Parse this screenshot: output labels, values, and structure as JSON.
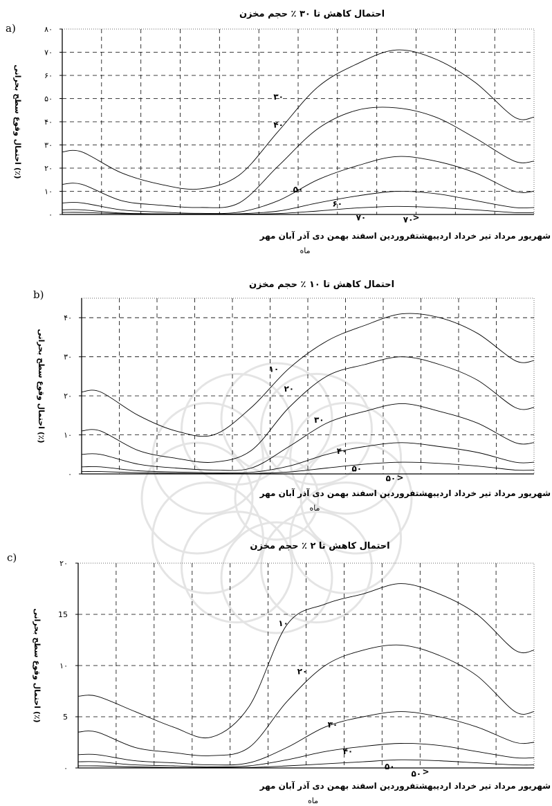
{
  "watermark": {
    "icon": "rosette-watermark",
    "color": "#cfcfcf"
  },
  "chart_data": [
    {
      "panel": "a)",
      "type": "line",
      "title": "احتمال کاهش تا ۳۰ ٪ حجم مخزن",
      "xlabel": "ماه",
      "ylabel": "احتمال وقوع سطح بحرانی (٪)",
      "categories": [
        "مهر",
        "آبان",
        "آذر",
        "دی",
        "بهمن",
        "اسفند",
        "فروردین",
        "اردیبهشت",
        "خرداد",
        "تیر",
        "مرداد",
        "شهریور"
      ],
      "x_direction": "right-to-left",
      "category_axis_text": "شهریور  مرداد   تیر        خرداد اردیبهشتفروردین اسفند   بهمن      دی     آذر   آبان   مهر",
      "ylim": [
        0,
        80
      ],
      "yticks": [
        0,
        10,
        20,
        30,
        40,
        50,
        60,
        70,
        80
      ],
      "ytick_labels": [
        "۰",
        "۱۰",
        "۲۰",
        "۳۰",
        "۴۰",
        "۵۰",
        "۶۰",
        "۷۰",
        "۸۰"
      ],
      "grid": true,
      "series": [
        {
          "name": "۳۰",
          "values": [
            42,
            57,
            67,
            71,
            65,
            55,
            36,
            17,
            11,
            13,
            18,
            27
          ]
        },
        {
          "name": "۴۰",
          "values": [
            23,
            33,
            42,
            46,
            45,
            37,
            21,
            5,
            3,
            4,
            6,
            13
          ]
        },
        {
          "name": "۵۰",
          "values": [
            10,
            18,
            23,
            25,
            21,
            15,
            6,
            1,
            0.5,
            1,
            2,
            5
          ]
        },
        {
          "name": "۶۰",
          "values": [
            3,
            6,
            9,
            10,
            8,
            5,
            1.5,
            0.3,
            0.2,
            0.3,
            0.6,
            2
          ]
        },
        {
          "name": "۷۰",
          "values": [
            0.8,
            2,
            3,
            3.5,
            2.8,
            1.5,
            0.4,
            0.1,
            0.1,
            0.2,
            0.4,
            0.9
          ]
        }
      ],
      "curve_labels": [
        {
          "text": "۳۰",
          "cat": 6,
          "val": 51
        },
        {
          "text": "۴۰",
          "cat": 6,
          "val": 39
        },
        {
          "text": "۵۰",
          "cat": 5.5,
          "val": 11
        },
        {
          "text": "۶۰",
          "cat": 4.5,
          "val": 5
        },
        {
          "text": "۷۰",
          "cat": 3.9,
          "val": -1
        },
        {
          "text": "۷۰",
          "cat": 2.7,
          "val": -2
        },
        {
          "text": ">",
          "cat": 2.5,
          "val": -1
        }
      ]
    },
    {
      "panel": "b)",
      "type": "line",
      "title": "احتمال کاهش تا ۱۰ ٪ حجم مخزن",
      "xlabel": "ماه",
      "ylabel": "احتمال وقوع سطح بحرانی (٪)",
      "categories": [
        "مهر",
        "آبان",
        "آذر",
        "دی",
        "بهمن",
        "اسفند",
        "فروردین",
        "اردیبهشت",
        "خرداد",
        "تیر",
        "مرداد",
        "شهریور"
      ],
      "x_direction": "right-to-left",
      "category_axis_text": "شهریور  مرداد   تیر     خرداد اردیبهشتفروردین اسفند   بهمن      دی     آذر   آبان   مهر",
      "ylim": [
        0,
        45
      ],
      "yticks": [
        0,
        10,
        20,
        30,
        40
      ],
      "ytick_labels": [
        "۰",
        "۱۰",
        "۲۰",
        "۳۰",
        "۴۰"
      ],
      "grid": true,
      "series": [
        {
          "name": "۱۰",
          "values": [
            29,
            36,
            40,
            41,
            38,
            34,
            27,
            17,
            10,
            11,
            15,
            21
          ]
        },
        {
          "name": "۲۰",
          "values": [
            17,
            24,
            28,
            30,
            28,
            25,
            17,
            6,
            3,
            4,
            6,
            11
          ]
        },
        {
          "name": "۳۰",
          "values": [
            8,
            13,
            16,
            18,
            16,
            13,
            7,
            1.5,
            1,
            1.5,
            2.5,
            5
          ]
        },
        {
          "name": "۴۰",
          "values": [
            3,
            5.5,
            7,
            8,
            7,
            5,
            2,
            0.4,
            0.3,
            0.5,
            0.8,
            1.8
          ]
        },
        {
          "name": "۵۰",
          "values": [
            1,
            2,
            2.7,
            3,
            2.5,
            1.5,
            0.5,
            0.1,
            0.1,
            0.2,
            0.3,
            0.6
          ]
        }
      ],
      "curve_labels": [
        {
          "text": "۱۰",
          "cat": 6.4,
          "val": 27
        },
        {
          "text": "۲۰",
          "cat": 6,
          "val": 22
        },
        {
          "text": "۳۰",
          "cat": 5.2,
          "val": 14
        },
        {
          "text": "۴۰",
          "cat": 4.6,
          "val": 6
        },
        {
          "text": "۵۰",
          "cat": 4.2,
          "val": 1.5
        },
        {
          "text": "۵۰",
          "cat": 3.3,
          "val": -1
        },
        {
          "text": ">",
          "cat": 3.05,
          "val": -0.8
        }
      ]
    },
    {
      "panel": "c)",
      "type": "line",
      "title": "احتمال کاهش تا ۲ ٪ حجم مخزن",
      "xlabel": "ماه",
      "ylabel": "احتمال وقوع سطح بحرانی (٪)",
      "categories": [
        "مهر",
        "آبان",
        "آذر",
        "دی",
        "بهمن",
        "اسفند",
        "فروردین",
        "اردیبهشت",
        "خرداد",
        "تیر",
        "مرداد",
        "شهریور"
      ],
      "x_direction": "right-to-left",
      "category_axis_text": "شهریور  مرداد   تیر     خرداد اردیبهشتفروردین اسفند   بهمن      دی     آذر   آبان   مهر",
      "ylim": [
        0,
        20
      ],
      "yticks": [
        0,
        5,
        10,
        15,
        20
      ],
      "ytick_labels": [
        "۰",
        "5",
        "۱۰",
        "15",
        "۲۰"
      ],
      "grid": true,
      "series": [
        {
          "name": "۱۰",
          "values": [
            11.5,
            15,
            17,
            18,
            17,
            16,
            14,
            6,
            3,
            4,
            5.5,
            7
          ]
        },
        {
          "name": "۲۰",
          "values": [
            5.5,
            9,
            11,
            12,
            11.5,
            10,
            6.5,
            2,
            1.2,
            1.5,
            2,
            3.5
          ]
        },
        {
          "name": "۳۰",
          "values": [
            2.5,
            4,
            5,
            5.5,
            5,
            4,
            2,
            0.5,
            0.3,
            0.5,
            0.7,
            1.3
          ]
        },
        {
          "name": "۴۰",
          "values": [
            1,
            1.6,
            2.2,
            2.4,
            2.1,
            1.6,
            0.8,
            0.2,
            0.1,
            0.2,
            0.3,
            0.6
          ]
        },
        {
          "name": "۵۰",
          "values": [
            0.3,
            0.5,
            0.7,
            0.8,
            0.6,
            0.4,
            0.2,
            0.05,
            0.05,
            0.05,
            0.1,
            0.2
          ]
        }
      ],
      "curve_labels": [
        {
          "text": "۱۰",
          "cat": 6.1,
          "val": 14.2
        },
        {
          "text": "۲۰",
          "cat": 5.6,
          "val": 9.5
        },
        {
          "text": "۳۰",
          "cat": 4.8,
          "val": 4.3
        },
        {
          "text": "۴۰",
          "cat": 4.4,
          "val": 1.7
        },
        {
          "text": "۵۰",
          "cat": 3.3,
          "val": 0.2
        },
        {
          "text": "۵۰",
          "cat": 2.6,
          "val": -0.5
        },
        {
          "text": ">",
          "cat": 2.35,
          "val": -0.3
        }
      ]
    }
  ]
}
